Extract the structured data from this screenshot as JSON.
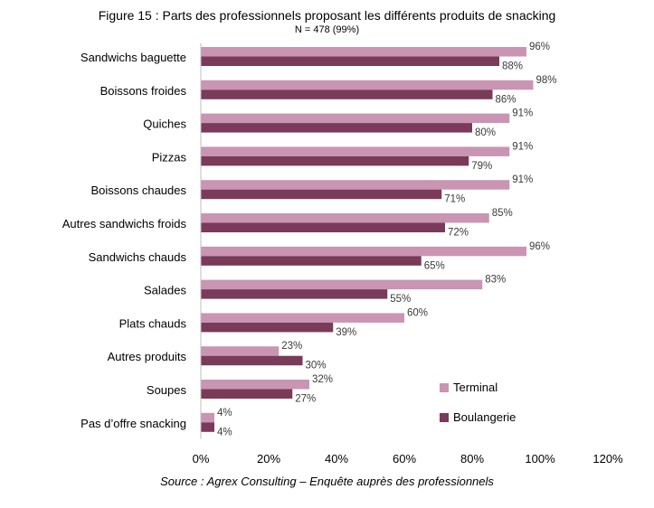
{
  "chart_data": {
    "type": "bar",
    "orientation": "horizontal",
    "title": "Figure 15 : Parts des professionnels proposant les différents produits de snacking",
    "subtitle": "N = 478 (99%)",
    "source": "Source : Agrex Consulting – Enquête auprès des professionnels",
    "categories": [
      "Sandwichs baguette",
      "Boissons froides",
      "Quiches",
      "Pizzas",
      "Boissons chaudes",
      "Autres sandwichs froids",
      "Sandwichs chauds",
      "Salades",
      "Plats chauds",
      "Autres produits",
      "Soupes",
      "Pas d’offre snacking"
    ],
    "series": [
      {
        "name": "Terminal",
        "color": "#c995b2",
        "values": [
          96,
          98,
          91,
          91,
          91,
          85,
          96,
          83,
          60,
          23,
          32,
          4
        ],
        "labels": [
          "96%",
          "98%",
          "91%",
          "91%",
          "91%",
          "85%",
          "96%",
          "83%",
          "60%",
          "23%",
          "32%",
          "4%"
        ]
      },
      {
        "name": "Boulangerie",
        "color": "#7a3a5a",
        "values": [
          88,
          86,
          80,
          79,
          71,
          72,
          65,
          55,
          39,
          30,
          27,
          4
        ],
        "labels": [
          "88%",
          "86%",
          "80%",
          "79%",
          "71%",
          "72%",
          "65%",
          "55%",
          "39%",
          "30%",
          "27%",
          "4%"
        ]
      }
    ],
    "xlim": [
      0,
      120
    ],
    "xticks": [
      "0%",
      "20%",
      "40%",
      "60%",
      "80%",
      "100%",
      "120%"
    ],
    "grid": false,
    "legend_position": "bottom-right"
  }
}
